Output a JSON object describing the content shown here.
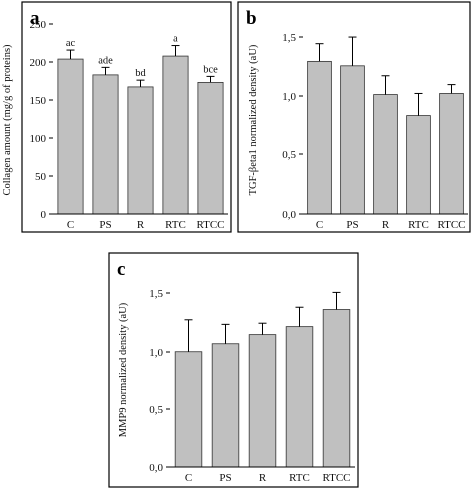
{
  "chart_data": [
    {
      "panel": "a",
      "type": "bar",
      "title": "",
      "xlabel": "",
      "ylabel": "Collagen amount (mg/g of proteins)",
      "categories": [
        "C",
        "PS",
        "R",
        "RTC",
        "RTCC"
      ],
      "values": [
        206,
        185,
        169,
        210,
        175
      ],
      "errors": [
        12,
        10,
        9,
        14,
        8
      ],
      "significance": [
        "ac",
        "ade",
        "bd",
        "a",
        "bce"
      ],
      "ylim": [
        0,
        250
      ],
      "yticks": [
        "0",
        "50",
        "100",
        "150",
        "200",
        "250"
      ],
      "bar_color": "#c0c0c0",
      "grid": false
    },
    {
      "panel": "b",
      "type": "bar",
      "title": "",
      "xlabel": "",
      "ylabel": "TGF-βeta1 normalized density (aU)",
      "categories": [
        "C",
        "PS",
        "R",
        "RTC",
        "RTCC"
      ],
      "values": [
        1.38,
        1.34,
        1.08,
        0.89,
        1.09
      ],
      "errors": [
        0.16,
        0.26,
        0.17,
        0.2,
        0.08
      ],
      "ylim": [
        0,
        1.7
      ],
      "yticks": [
        "0,0",
        "0,5",
        "1,0",
        "1,5"
      ],
      "bar_color": "#c0c0c0",
      "grid": false
    },
    {
      "panel": "c",
      "type": "bar",
      "title": "",
      "xlabel": "",
      "ylabel": "MMP9 normalized density (aU)",
      "categories": [
        "C",
        "PS",
        "R",
        "RTC",
        "RTCC"
      ],
      "values": [
        1.01,
        1.08,
        1.16,
        1.23,
        1.38
      ],
      "errors": [
        0.28,
        0.17,
        0.1,
        0.17,
        0.15
      ],
      "ylim": [
        0,
        1.7
      ],
      "yticks": [
        "0,0",
        "0,5",
        "1,0",
        "1,5"
      ],
      "bar_color": "#c0c0c0",
      "grid": false
    }
  ]
}
